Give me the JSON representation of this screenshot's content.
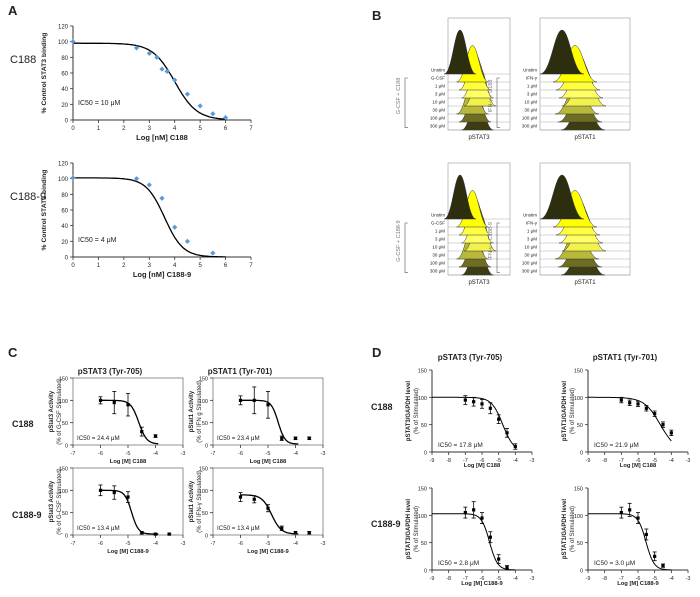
{
  "panel_letters": {
    "A": "A",
    "B": "B",
    "C": "C",
    "D": "D"
  },
  "panelA": {
    "rows": [
      {
        "row_label": "C188",
        "ylabel": "% Control STAT3 binding",
        "xlabel": "Log [nM] C188",
        "ic50": "IC50 = 10 μM"
      },
      {
        "row_label": "C188-9",
        "ylabel": "% Control STAT3 binding",
        "xlabel": "Log [nM] C188-9",
        "ic50": "IC50 = 4 μM"
      }
    ],
    "x_ticks": [
      "0",
      "1",
      "2",
      "3",
      "4",
      "5",
      "6",
      "7"
    ],
    "y_ticks": [
      "0",
      "20",
      "40",
      "60",
      "80",
      "100",
      "120"
    ]
  },
  "panelB": {
    "histograms": [
      {
        "bracket": "G-CSF + C188",
        "axis": "pSTAT3",
        "labels": [
          "Unstim",
          "G-CSF",
          "1 μM",
          "3 μM",
          "10 μM",
          "30 μM",
          "100 μM",
          "300 μM"
        ]
      },
      {
        "bracket": "IFN-γ + C188",
        "axis": "pSTAT1",
        "labels": [
          "Unstim",
          "IFN-γ",
          "1 μM",
          "3 μM",
          "10 μM",
          "30 μM",
          "100 μM",
          "300 μM"
        ]
      },
      {
        "bracket": "G-CSF + C188-9",
        "axis": "pSTAT3",
        "labels": [
          "Unstim",
          "G-CSF",
          "1 μM",
          "3 μM",
          "10 μM",
          "30 μM",
          "100 μM",
          "300 μM"
        ]
      },
      {
        "bracket": "IFN-γ + C188-9",
        "axis": "pSTAT1",
        "labels": [
          "Unstim",
          "IFN-γ",
          "1 μM",
          "3 μM",
          "10 μM",
          "30 μM",
          "100 μM",
          "300 μM"
        ]
      }
    ]
  },
  "panelC": {
    "col_titles": [
      "pSTAT3 (Tyr-705)",
      "pSTAT1 (Tyr-701)"
    ],
    "row_labels": [
      "C188",
      "C188-9"
    ],
    "x_ticks": [
      "-7",
      "-6",
      "-5",
      "-4",
      "-3"
    ],
    "y_ticks": [
      "0",
      "50",
      "100",
      "150"
    ],
    "plots": [
      {
        "ylabel1": "pStat3 Activity",
        "ylabel2": "(% of G-CSF Stimulated)",
        "xlabel": "Log [M] C188",
        "ic50": "IC50 = 24.4 μM"
      },
      {
        "ylabel1": "pStat1 Activity",
        "ylabel2": "(% of IFN g Stimulated)",
        "xlabel": "Log [M] C188",
        "ic50": "IC50 = 23.4 μM"
      },
      {
        "ylabel1": "pStat3 Activity",
        "ylabel2": "(% of G-CSF Stimulated)",
        "xlabel": "Log [M] C188-9",
        "ic50": "IC50 = 13.4 μM"
      },
      {
        "ylabel1": "pStat1 Activity",
        "ylabel2": "(% of IFN-γ Stimulated)",
        "xlabel": "Log [M] C188-9",
        "ic50": "IC50 = 13.4 μM"
      }
    ]
  },
  "panelD": {
    "col_titles": [
      "pSTAT3 (Tyr-705)",
      "pSTAT1 (Tyr-701)"
    ],
    "row_labels": [
      "C188",
      "C188-9"
    ],
    "x_ticks": [
      "-9",
      "-8",
      "-7",
      "-6",
      "-5",
      "-4",
      "-3"
    ],
    "y_ticks": [
      "0",
      "50",
      "100",
      "150"
    ],
    "plots": [
      {
        "ylabel1": "pSTAT3/GAPDH level",
        "ylabel2": "(% of Stimulated)",
        "xlabel": "Log [M] C188",
        "ic50": "IC50 = 17.8 μM"
      },
      {
        "ylabel1": "pSTAT1/GAPDH level",
        "ylabel2": "(% of Stimulated)",
        "xlabel": "Log [M] C188",
        "ic50": "IC50 = 21.9 μM"
      },
      {
        "ylabel1": "pSTAT3/GAPDH level",
        "ylabel2": "(% of Stimulated)",
        "xlabel": "Log [M] C188-9",
        "ic50": "IC50 = 2.8 μM"
      },
      {
        "ylabel1": "pSTAT1/GAPDH level",
        "ylabel2": "(% of Stimulated)",
        "xlabel": "Log [M] C188-9",
        "ic50": "IC50 = 3.0 μM"
      }
    ]
  },
  "colors": {
    "curve": "#000000",
    "pointA": "#5b9bd5",
    "histFill": "#ffff33",
    "histDark": "#4a4a1a"
  },
  "chart_data": [
    {
      "type": "scatter",
      "panel": "A",
      "title": "C188",
      "xlabel": "Log [nM] C188",
      "ylabel": "% Control STAT3 binding",
      "xlim": [
        0,
        7
      ],
      "ylim": [
        0,
        120
      ],
      "ic50_log": 4.0,
      "x": [
        0,
        2.5,
        3,
        3.3,
        3.5,
        3.7,
        4,
        4.5,
        5,
        5.5,
        6
      ],
      "y": [
        100,
        92,
        85,
        80,
        65,
        62,
        51,
        33,
        18,
        8,
        3
      ]
    },
    {
      "type": "scatter",
      "panel": "A",
      "title": "C188-9",
      "xlabel": "Log [nM] C188-9",
      "ylabel": "% Control STAT3 binding",
      "xlim": [
        0,
        7
      ],
      "ylim": [
        0,
        120
      ],
      "ic50_log": 3.6,
      "x": [
        0,
        2.5,
        3,
        3.5,
        4,
        4.5,
        5.5
      ],
      "y": [
        101,
        100,
        92,
        75,
        38,
        20,
        5
      ]
    },
    {
      "type": "scatter",
      "panel": "C",
      "title": "pSTAT3 (Tyr-705) C188",
      "xlim": [
        -7,
        -3
      ],
      "ylim": [
        0,
        150
      ],
      "ic50_log": -4.61,
      "x": [
        -6,
        -5.5,
        -5,
        -4.5,
        -4
      ],
      "y": [
        100,
        95,
        90,
        30,
        20
      ],
      "err": [
        8,
        25,
        25,
        10,
        3
      ]
    },
    {
      "type": "scatter",
      "panel": "C",
      "title": "pSTAT1 (Tyr-701) C188",
      "xlim": [
        -7,
        -3
      ],
      "ylim": [
        0,
        150
      ],
      "ic50_log": -4.63,
      "x": [
        -6,
        -5.5,
        -5,
        -4.5,
        -4,
        -3.5
      ],
      "y": [
        100,
        100,
        90,
        15,
        15,
        15
      ],
      "err": [
        10,
        30,
        30,
        5,
        3,
        3
      ]
    },
    {
      "type": "scatter",
      "panel": "C",
      "title": "pSTAT3 (Tyr-705) C188-9",
      "xlim": [
        -7,
        -3
      ],
      "ylim": [
        0,
        150
      ],
      "ic50_log": -4.87,
      "x": [
        -6,
        -5.5,
        -5,
        -4.5,
        -4,
        -3.5
      ],
      "y": [
        100,
        95,
        85,
        5,
        2,
        2
      ],
      "err": [
        12,
        15,
        12,
        3,
        2,
        2
      ]
    },
    {
      "type": "scatter",
      "panel": "C",
      "title": "pSTAT1 (Tyr-701) C188-9",
      "xlim": [
        -7,
        -3
      ],
      "ylim": [
        0,
        150
      ],
      "ic50_log": -4.87,
      "x": [
        -6,
        -5.5,
        -5,
        -4.5,
        -4,
        -3.5
      ],
      "y": [
        85,
        80,
        60,
        15,
        5,
        5
      ],
      "err": [
        10,
        8,
        8,
        5,
        3,
        3
      ]
    },
    {
      "type": "scatter",
      "panel": "D",
      "title": "pSTAT3 (Tyr-705) C188",
      "xlim": [
        -9,
        -3
      ],
      "ylim": [
        0,
        150
      ],
      "ic50_log": -4.75,
      "x": [
        -7,
        -6.5,
        -6,
        -5.5,
        -5,
        -4.5,
        -4
      ],
      "y": [
        95,
        92,
        88,
        80,
        60,
        35,
        10
      ],
      "err": [
        8,
        8,
        8,
        10,
        8,
        8,
        5
      ]
    },
    {
      "type": "scatter",
      "panel": "D",
      "title": "pSTAT1 (Tyr-701) C188",
      "xlim": [
        -9,
        -3
      ],
      "ylim": [
        0,
        150
      ],
      "ic50_log": -4.66,
      "x": [
        -7,
        -6.5,
        -6,
        -5.5,
        -5,
        -4.5,
        -4
      ],
      "y": [
        95,
        90,
        88,
        80,
        70,
        50,
        35
      ],
      "err": [
        5,
        5,
        5,
        5,
        5,
        5,
        5
      ]
    },
    {
      "type": "scatter",
      "panel": "D",
      "title": "pSTAT3 (Tyr-705) C188-9",
      "xlim": [
        -9,
        -3
      ],
      "ylim": [
        0,
        150
      ],
      "ic50_log": -5.55,
      "x": [
        -7,
        -6.5,
        -6,
        -5.5,
        -5,
        -4.5
      ],
      "y": [
        105,
        110,
        95,
        60,
        20,
        5
      ],
      "err": [
        10,
        15,
        10,
        10,
        8,
        3
      ]
    },
    {
      "type": "scatter",
      "panel": "D",
      "title": "pSTAT1 (Tyr-701) C188-9",
      "xlim": [
        -9,
        -3
      ],
      "ylim": [
        0,
        150
      ],
      "ic50_log": -5.52,
      "x": [
        -7,
        -6.5,
        -6,
        -5.5,
        -5,
        -4.5
      ],
      "y": [
        105,
        110,
        95,
        65,
        25,
        8
      ],
      "err": [
        10,
        12,
        10,
        10,
        8,
        3
      ]
    }
  ]
}
